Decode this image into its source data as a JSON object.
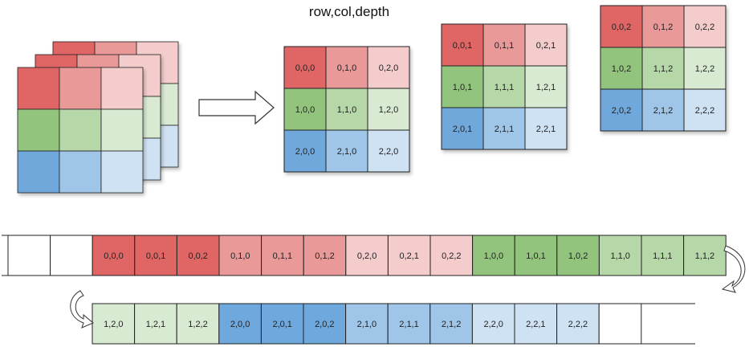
{
  "title": "row,col,depth",
  "colors": {
    "red": [
      "#e06666",
      "#ea9999",
      "#f4cccc"
    ],
    "green": [
      "#93c47d",
      "#b6d7a8",
      "#d9ead3"
    ],
    "blue": [
      "#6fa8dc",
      "#9fc5e8",
      "#cfe2f3"
    ],
    "stroke": "#222222",
    "empty": "#ffffff"
  },
  "slices": [
    {
      "depth": 0,
      "cells": [
        [
          "0,0,0",
          "0,1,0",
          "0,2,0"
        ],
        [
          "1,0,0",
          "1,1,0",
          "1,2,0"
        ],
        [
          "2,0,0",
          "2,1,0",
          "2,2,0"
        ]
      ]
    },
    {
      "depth": 1,
      "cells": [
        [
          "0,0,1",
          "0,1,1",
          "0,2,1"
        ],
        [
          "1,0,1",
          "1,1,1",
          "1,2,1"
        ],
        [
          "2,0,1",
          "2,1,1",
          "2,2,1"
        ]
      ]
    },
    {
      "depth": 2,
      "cells": [
        [
          "0,0,2",
          "0,1,2",
          "0,2,2"
        ],
        [
          "1,0,2",
          "1,1,2",
          "1,2,2"
        ],
        [
          "2,0,2",
          "2,1,2",
          "2,2,2"
        ]
      ]
    }
  ],
  "memory_row1": [
    "",
    "",
    "0,0,0",
    "0,0,1",
    "0,0,2",
    "0,1,0",
    "0,1,1",
    "0,1,2",
    "0,2,0",
    "0,2,1",
    "0,2,2",
    "1,0,0",
    "1,0,1",
    "1,0,2",
    "1,1,0",
    "1,1,1",
    "1,1,2"
  ],
  "memory_row2": [
    "1,2,0",
    "1,2,1",
    "1,2,2",
    "2,0,0",
    "2,0,1",
    "2,0,2",
    "2,1,0",
    "2,1,1",
    "2,1,2",
    "2,2,0",
    "2,2,1",
    "2,2,2",
    ""
  ]
}
